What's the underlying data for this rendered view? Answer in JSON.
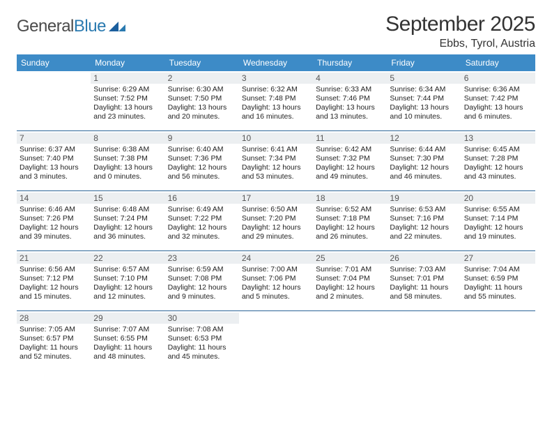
{
  "logo": {
    "word1": "General",
    "word2": "Blue"
  },
  "title": "September 2025",
  "location": "Ebbs, Tyrol, Austria",
  "colors": {
    "header_bg": "#3d8bc7",
    "header_text": "#ffffff",
    "daynum_bg": "#eceff1",
    "daynum_text": "#555555",
    "rule": "#2a6496",
    "body_text": "#222222",
    "title_text": "#333333",
    "logo_gray": "#4a4a4a",
    "logo_blue": "#2a7ab0",
    "logo_mark": "#1b5f9e"
  },
  "weekdays": [
    "Sunday",
    "Monday",
    "Tuesday",
    "Wednesday",
    "Thursday",
    "Friday",
    "Saturday"
  ],
  "layout": {
    "first_weekday_index": 1,
    "rows": 5,
    "cols": 7
  },
  "days": [
    {
      "n": 1,
      "sunrise": "6:29 AM",
      "sunset": "7:52 PM",
      "daylight": "13 hours and 23 minutes."
    },
    {
      "n": 2,
      "sunrise": "6:30 AM",
      "sunset": "7:50 PM",
      "daylight": "13 hours and 20 minutes."
    },
    {
      "n": 3,
      "sunrise": "6:32 AM",
      "sunset": "7:48 PM",
      "daylight": "13 hours and 16 minutes."
    },
    {
      "n": 4,
      "sunrise": "6:33 AM",
      "sunset": "7:46 PM",
      "daylight": "13 hours and 13 minutes."
    },
    {
      "n": 5,
      "sunrise": "6:34 AM",
      "sunset": "7:44 PM",
      "daylight": "13 hours and 10 minutes."
    },
    {
      "n": 6,
      "sunrise": "6:36 AM",
      "sunset": "7:42 PM",
      "daylight": "13 hours and 6 minutes."
    },
    {
      "n": 7,
      "sunrise": "6:37 AM",
      "sunset": "7:40 PM",
      "daylight": "13 hours and 3 minutes."
    },
    {
      "n": 8,
      "sunrise": "6:38 AM",
      "sunset": "7:38 PM",
      "daylight": "13 hours and 0 minutes."
    },
    {
      "n": 9,
      "sunrise": "6:40 AM",
      "sunset": "7:36 PM",
      "daylight": "12 hours and 56 minutes."
    },
    {
      "n": 10,
      "sunrise": "6:41 AM",
      "sunset": "7:34 PM",
      "daylight": "12 hours and 53 minutes."
    },
    {
      "n": 11,
      "sunrise": "6:42 AM",
      "sunset": "7:32 PM",
      "daylight": "12 hours and 49 minutes."
    },
    {
      "n": 12,
      "sunrise": "6:44 AM",
      "sunset": "7:30 PM",
      "daylight": "12 hours and 46 minutes."
    },
    {
      "n": 13,
      "sunrise": "6:45 AM",
      "sunset": "7:28 PM",
      "daylight": "12 hours and 43 minutes."
    },
    {
      "n": 14,
      "sunrise": "6:46 AM",
      "sunset": "7:26 PM",
      "daylight": "12 hours and 39 minutes."
    },
    {
      "n": 15,
      "sunrise": "6:48 AM",
      "sunset": "7:24 PM",
      "daylight": "12 hours and 36 minutes."
    },
    {
      "n": 16,
      "sunrise": "6:49 AM",
      "sunset": "7:22 PM",
      "daylight": "12 hours and 32 minutes."
    },
    {
      "n": 17,
      "sunrise": "6:50 AM",
      "sunset": "7:20 PM",
      "daylight": "12 hours and 29 minutes."
    },
    {
      "n": 18,
      "sunrise": "6:52 AM",
      "sunset": "7:18 PM",
      "daylight": "12 hours and 26 minutes."
    },
    {
      "n": 19,
      "sunrise": "6:53 AM",
      "sunset": "7:16 PM",
      "daylight": "12 hours and 22 minutes."
    },
    {
      "n": 20,
      "sunrise": "6:55 AM",
      "sunset": "7:14 PM",
      "daylight": "12 hours and 19 minutes."
    },
    {
      "n": 21,
      "sunrise": "6:56 AM",
      "sunset": "7:12 PM",
      "daylight": "12 hours and 15 minutes."
    },
    {
      "n": 22,
      "sunrise": "6:57 AM",
      "sunset": "7:10 PM",
      "daylight": "12 hours and 12 minutes."
    },
    {
      "n": 23,
      "sunrise": "6:59 AM",
      "sunset": "7:08 PM",
      "daylight": "12 hours and 9 minutes."
    },
    {
      "n": 24,
      "sunrise": "7:00 AM",
      "sunset": "7:06 PM",
      "daylight": "12 hours and 5 minutes."
    },
    {
      "n": 25,
      "sunrise": "7:01 AM",
      "sunset": "7:04 PM",
      "daylight": "12 hours and 2 minutes."
    },
    {
      "n": 26,
      "sunrise": "7:03 AM",
      "sunset": "7:01 PM",
      "daylight": "11 hours and 58 minutes."
    },
    {
      "n": 27,
      "sunrise": "7:04 AM",
      "sunset": "6:59 PM",
      "daylight": "11 hours and 55 minutes."
    },
    {
      "n": 28,
      "sunrise": "7:05 AM",
      "sunset": "6:57 PM",
      "daylight": "11 hours and 52 minutes."
    },
    {
      "n": 29,
      "sunrise": "7:07 AM",
      "sunset": "6:55 PM",
      "daylight": "11 hours and 48 minutes."
    },
    {
      "n": 30,
      "sunrise": "7:08 AM",
      "sunset": "6:53 PM",
      "daylight": "11 hours and 45 minutes."
    }
  ],
  "labels": {
    "sunrise": "Sunrise: ",
    "sunset": "Sunset: ",
    "daylight": "Daylight: "
  }
}
